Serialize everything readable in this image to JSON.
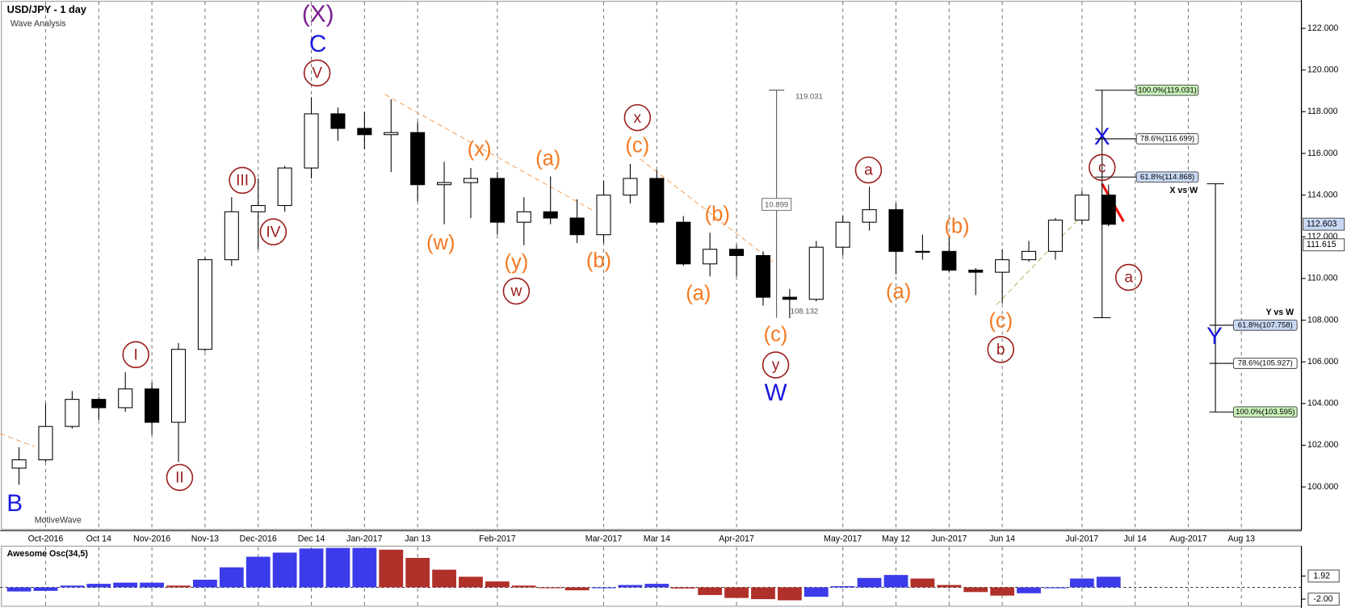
{
  "chart_data": {
    "type": "candlestick",
    "title": "USD/JPY - 1 day",
    "subtitle": "Wave Analysis",
    "watermark": "MotiveWave",
    "categories": [
      null,
      "Oct-2016",
      null,
      "Oct 14",
      null,
      "Nov-2016",
      null,
      "Nov-13",
      null,
      "Dec-2016",
      null,
      "Dec 14",
      null,
      "Jan-2017",
      null,
      "Jan 13",
      null,
      null,
      "Feb-2017",
      null,
      null,
      null,
      "Mar-2017",
      null,
      "Mar 14",
      null,
      null,
      "Apr-2017",
      null,
      null,
      null,
      "May-2017",
      null,
      "May 12",
      null,
      "Jun-2017",
      null,
      "Jun 14",
      null,
      null,
      "Jul-2017",
      null,
      "Jul 14",
      null,
      "Aug-2017",
      null,
      "Aug 13"
    ],
    "open": [
      100.9,
      101.3,
      102.9,
      104.2,
      103.8,
      104.7,
      103.1,
      106.6,
      110.9,
      113.2,
      113.5,
      115.3,
      117.9,
      117.2,
      116.9,
      117.0,
      114.5,
      114.6,
      114.8,
      112.7,
      113.2,
      112.9,
      112.1,
      114.0,
      114.8,
      112.7,
      110.7,
      111.4,
      111.1,
      109.1,
      109.0,
      111.5,
      112.7,
      113.3,
      111.3,
      111.3,
      110.4,
      110.3,
      110.9,
      111.3,
      112.8,
      114.0,
      null,
      null,
      null,
      null,
      null
    ],
    "high": [
      101.9,
      104.0,
      104.6,
      104.3,
      105.5,
      105.0,
      106.9,
      111.0,
      113.9,
      114.8,
      115.4,
      118.7,
      118.2,
      118.0,
      118.6,
      117.5,
      115.6,
      115.3,
      115.1,
      113.9,
      114.9,
      113.8,
      114.7,
      115.5,
      115.2,
      113.0,
      112.2,
      111.6,
      111.3,
      109.5,
      111.8,
      113.0,
      114.4,
      113.6,
      112.1,
      112.0,
      110.5,
      111.4,
      111.8,
      112.9,
      114.2,
      114.5,
      null,
      null,
      null,
      null,
      null
    ],
    "low": [
      100.1,
      101.2,
      102.8,
      103.2,
      103.6,
      102.5,
      101.2,
      106.5,
      110.6,
      111.4,
      113.2,
      114.8,
      116.6,
      116.2,
      115.1,
      113.7,
      112.6,
      112.9,
      112.1,
      111.6,
      112.6,
      111.7,
      111.7,
      113.6,
      112.6,
      110.6,
      110.1,
      110.1,
      108.7,
      108.1,
      108.9,
      111.1,
      112.3,
      110.2,
      110.9,
      110.3,
      109.2,
      108.8,
      110.8,
      110.9,
      112.6,
      112.5,
      null,
      null,
      null,
      null,
      null
    ],
    "close": [
      101.3,
      102.9,
      104.2,
      103.8,
      104.7,
      103.1,
      106.6,
      110.9,
      113.2,
      113.5,
      115.3,
      117.9,
      117.2,
      116.9,
      117.0,
      114.5,
      114.6,
      114.8,
      112.7,
      113.2,
      112.9,
      112.1,
      114.0,
      114.8,
      112.7,
      110.7,
      111.4,
      111.1,
      109.1,
      109.0,
      111.5,
      112.7,
      113.3,
      111.3,
      111.3,
      110.4,
      110.3,
      110.9,
      111.3,
      112.8,
      114.0,
      112.6,
      null,
      null,
      null,
      null,
      null
    ],
    "colors": {
      "up": "#ffffff",
      "down": "#000000",
      "outline": "#000000"
    },
    "ylim": [
      97.9,
      123.36
    ],
    "yticks": [
      {
        "value": 100,
        "label": "100.000"
      },
      {
        "value": 102,
        "label": "102.000"
      },
      {
        "value": 104,
        "label": "104.000"
      },
      {
        "value": 106,
        "label": "106.000"
      },
      {
        "value": 108,
        "label": "108.000"
      },
      {
        "value": 110,
        "label": "110.000"
      },
      {
        "value": 112,
        "label": "112.000"
      },
      {
        "value": 114,
        "label": "114.000"
      },
      {
        "value": 116,
        "label": "116.000"
      },
      {
        "value": 118,
        "label": "118.000"
      },
      {
        "value": 120,
        "label": "120.000"
      },
      {
        "value": 122,
        "label": "122.000"
      }
    ],
    "grid": true,
    "price_tags": [
      {
        "value": 112.603,
        "label": "112.603",
        "bg": "#c9d9f5"
      },
      {
        "value": 111.615,
        "label": "111.615",
        "bg": "#ffffff"
      }
    ],
    "fib_x": [
      {
        "value": 119.031,
        "label": "100.0%(119.031)",
        "bg": "#c8f0b8"
      },
      {
        "value": 116.699,
        "label": "78.6%(116.699)",
        "bg": "#ffffff"
      },
      {
        "value": 114.868,
        "label": "61.8%(114.868)",
        "bg": "#c9d9f5"
      }
    ],
    "fib_y": [
      {
        "value": 107.758,
        "label": "61.8%(107.758)",
        "bg": "#c9d9f5"
      },
      {
        "value": 105.927,
        "label": "78.6%(105.927)",
        "bg": "#ffffff"
      },
      {
        "value": 103.595,
        "label": "100.0%(103.595)",
        "bg": "#c8f0b8"
      }
    ],
    "annotations": [
      {
        "text": "(X)",
        "color": "#7b1f8f",
        "circle": false
      },
      {
        "text": "C",
        "color": "#1a1adb",
        "circle": false
      },
      {
        "text": "V",
        "color": "#9b1c1c",
        "circle": true
      },
      {
        "text": "III",
        "color": "#9b1c1c",
        "circle": true
      },
      {
        "text": "IV",
        "color": "#9b1c1c",
        "circle": true
      },
      {
        "text": "I",
        "color": "#9b1c1c",
        "circle": true
      },
      {
        "text": "II",
        "color": "#9b1c1c",
        "circle": true
      },
      {
        "text": "B",
        "color": "#1a1adb",
        "circle": false
      },
      {
        "text": "(w)",
        "color": "#f47920",
        "circle": false
      },
      {
        "text": "(x)",
        "color": "#f47920",
        "circle": false
      },
      {
        "text": "(y)",
        "color": "#f47920",
        "circle": false
      },
      {
        "text": "w",
        "color": "#9b1c1c",
        "circle": true
      },
      {
        "text": "(a)",
        "color": "#f47920",
        "circle": false
      },
      {
        "text": "(b)",
        "color": "#f47920",
        "circle": false
      },
      {
        "text": "(c)",
        "color": "#f47920",
        "circle": false
      },
      {
        "text": "x",
        "color": "#9b1c1c",
        "circle": true
      },
      {
        "text": "(a)",
        "color": "#f47920",
        "circle": false
      },
      {
        "text": "(b)",
        "color": "#f47920",
        "circle": false
      },
      {
        "text": "(c)",
        "color": "#f47920",
        "circle": false
      },
      {
        "text": "y",
        "color": "#9b1c1c",
        "circle": true
      },
      {
        "text": "W",
        "color": "#1a1adb",
        "circle": false
      },
      {
        "text": "a",
        "color": "#9b1c1c",
        "circle": true
      },
      {
        "text": "(a)",
        "color": "#f47920",
        "circle": false
      },
      {
        "text": "(b)",
        "color": "#f47920",
        "circle": false
      },
      {
        "text": "(c)",
        "color": "#f47920",
        "circle": false
      },
      {
        "text": "b",
        "color": "#9b1c1c",
        "circle": true
      },
      {
        "text": "c",
        "color": "#9b1c1c",
        "circle": true
      },
      {
        "text": "X",
        "color": "#1a1adb",
        "circle": false
      },
      {
        "text": "a",
        "color": "#9b1c1c",
        "circle": true
      },
      {
        "text": "Y",
        "color": "#1a1adb",
        "circle": false
      },
      {
        "text": "X vs W",
        "color": "#000000",
        "circle": false
      },
      {
        "text": "Y vs W",
        "color": "#000000",
        "circle": false
      },
      {
        "text": "119.031",
        "color": "#555555",
        "circle": false
      },
      {
        "text": "10.899",
        "color": "#555555",
        "circle": false
      },
      {
        "text": "108.132",
        "color": "#555555",
        "circle": false
      }
    ],
    "oscillator": {
      "title": "Awesome Osc(34,5)",
      "values": [
        -0.7,
        -0.6,
        0.3,
        0.6,
        0.8,
        0.8,
        0.3,
        1.3,
        3.4,
        5.2,
        5.9,
        6.6,
        6.7,
        6.7,
        6.4,
        5.0,
        3.0,
        1.8,
        1.0,
        0.3,
        0.0,
        -0.5,
        -0.1,
        0.4,
        0.6,
        -0.2,
        -1.3,
        -1.8,
        -2.0,
        -2.2,
        -1.6,
        0.2,
        1.6,
        2.1,
        1.5,
        0.4,
        -0.8,
        -1.4,
        -1.0,
        0.0,
        1.5,
        1.8,
        null,
        null,
        null,
        null,
        null
      ],
      "colors": {
        "up": "#3b3bea",
        "down": "#b0302a"
      },
      "ylim": [
        -3.5,
        7
      ],
      "yticks": [
        {
          "value": 1.92,
          "label": "1.92"
        },
        {
          "value": -2,
          "label": "-2.00"
        }
      ]
    }
  }
}
